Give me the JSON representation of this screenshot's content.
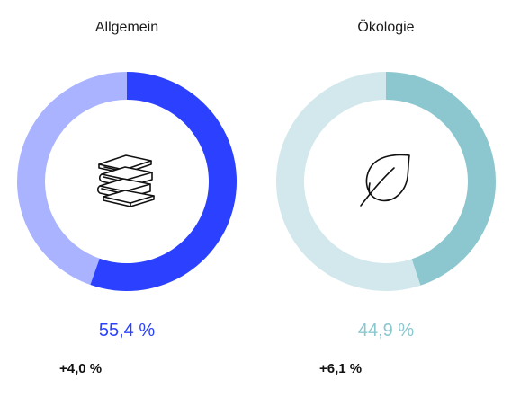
{
  "chart_data": [
    {
      "type": "pie",
      "title": "Allgemein",
      "categories": [
        "Allgemein",
        "Rest"
      ],
      "values": [
        55.4,
        44.6
      ],
      "value_label": "55,4 %",
      "change_label": "+4,0 %",
      "colors": {
        "primary": "#2b41ff",
        "secondary": "#a9b3ff",
        "value_text": "#2b41ff"
      },
      "icon": "books-icon"
    },
    {
      "type": "pie",
      "title": "Ökologie",
      "categories": [
        "Ökologie",
        "Rest"
      ],
      "values": [
        44.9,
        55.1
      ],
      "value_label": "44,9 %",
      "change_label": "+6,1 %",
      "colors": {
        "primary": "#8cc7cf",
        "secondary": "#d2e8ec",
        "value_text": "#8cc7cf"
      },
      "icon": "leaf-icon"
    }
  ]
}
